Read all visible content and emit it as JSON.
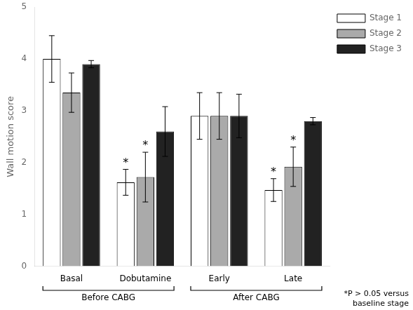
{
  "chart_data": {
    "type": "bar",
    "categories": [
      "Basal",
      "Dobutamine",
      "Early",
      "Late"
    ],
    "series": [
      {
        "name": "Stage 1",
        "color": "#ffffff",
        "values": [
          4.0,
          1.62,
          2.9,
          1.47
        ],
        "errors": [
          0.45,
          0.25,
          0.45,
          0.22
        ]
      },
      {
        "name": "Stage 2",
        "color": "#aaaaaa",
        "values": [
          3.35,
          1.72,
          2.9,
          1.92
        ],
        "errors": [
          0.38,
          0.48,
          0.45,
          0.38
        ]
      },
      {
        "name": "Stage 3",
        "color": "#222222",
        "values": [
          3.9,
          2.6,
          2.9,
          2.8
        ],
        "errors": [
          0.07,
          0.48,
          0.42,
          0.07
        ]
      }
    ],
    "ylabel": "Wall motion score",
    "ylim": [
      0,
      5
    ],
    "yticks": [
      0,
      1,
      2,
      3,
      4,
      5
    ],
    "grid": false,
    "legend": "upper right",
    "annotations": [
      {
        "text": "*",
        "series": "Stage 1",
        "category": "Dobutamine"
      },
      {
        "text": "*",
        "series": "Stage 2",
        "category": "Dobutamine"
      },
      {
        "text": "*",
        "series": "Stage 1",
        "category": "Late"
      },
      {
        "text": "*",
        "series": "Stage 2",
        "category": "Late"
      }
    ],
    "note": "*P > 0.05 versus\nbaseline stage",
    "groups": [
      {
        "label": "Before CABG",
        "categories": [
          "Basal",
          "Dobutamine"
        ]
      },
      {
        "label": "After CABG",
        "categories": [
          "Early",
          "Late"
        ]
      }
    ]
  }
}
